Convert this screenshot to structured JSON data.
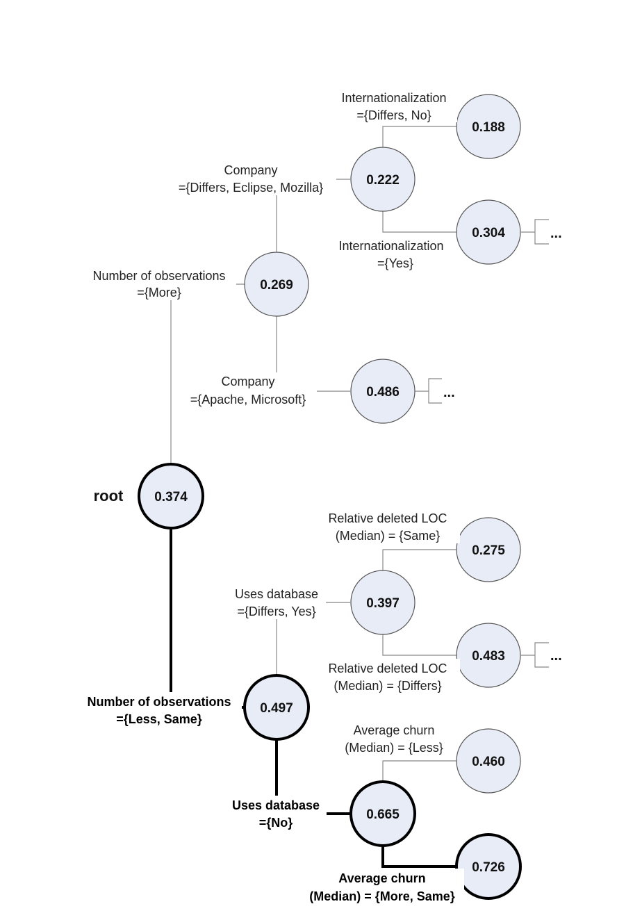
{
  "root_label": "root",
  "ellipsis": "...",
  "nodes": {
    "n374": "0.374",
    "n269": "0.269",
    "n222": "0.222",
    "n188": "0.188",
    "n304": "0.304",
    "n486": "0.486",
    "n497": "0.497",
    "n397": "0.397",
    "n275": "0.275",
    "n483": "0.483",
    "n665": "0.665",
    "n460": "0.460",
    "n726": "0.726"
  },
  "labels": {
    "obs_more": [
      "Number of observations",
      "={More}"
    ],
    "company_ecl": [
      "Company",
      "={Differs, Eclipse, Mozilla}"
    ],
    "intl_dn": [
      "Internationalization",
      "={Differs, No}"
    ],
    "intl_yes": [
      "Internationalization",
      "={Yes}"
    ],
    "company_am": [
      "Company",
      "={Apache, Microsoft}"
    ],
    "obs_less": [
      "Number of observations",
      "={Less, Same}"
    ],
    "db_dy": [
      "Uses database",
      "={Differs, Yes}"
    ],
    "rel_same": [
      "Relative deleted LOC",
      "(Median) = {Same}"
    ],
    "rel_differs": [
      "Relative deleted LOC",
      "(Median) = {Differs}"
    ],
    "db_no": [
      "Uses database",
      "={No}"
    ],
    "churn_less": [
      "Average churn",
      "(Median) = {Less}"
    ],
    "churn_more": [
      "Average churn",
      "(Median) = {More, Same}"
    ]
  },
  "colors": {
    "node_fill": "#e8ecf6",
    "thin_stroke": "#555555",
    "thin_line": "#888888",
    "bold_stroke": "#000000"
  }
}
